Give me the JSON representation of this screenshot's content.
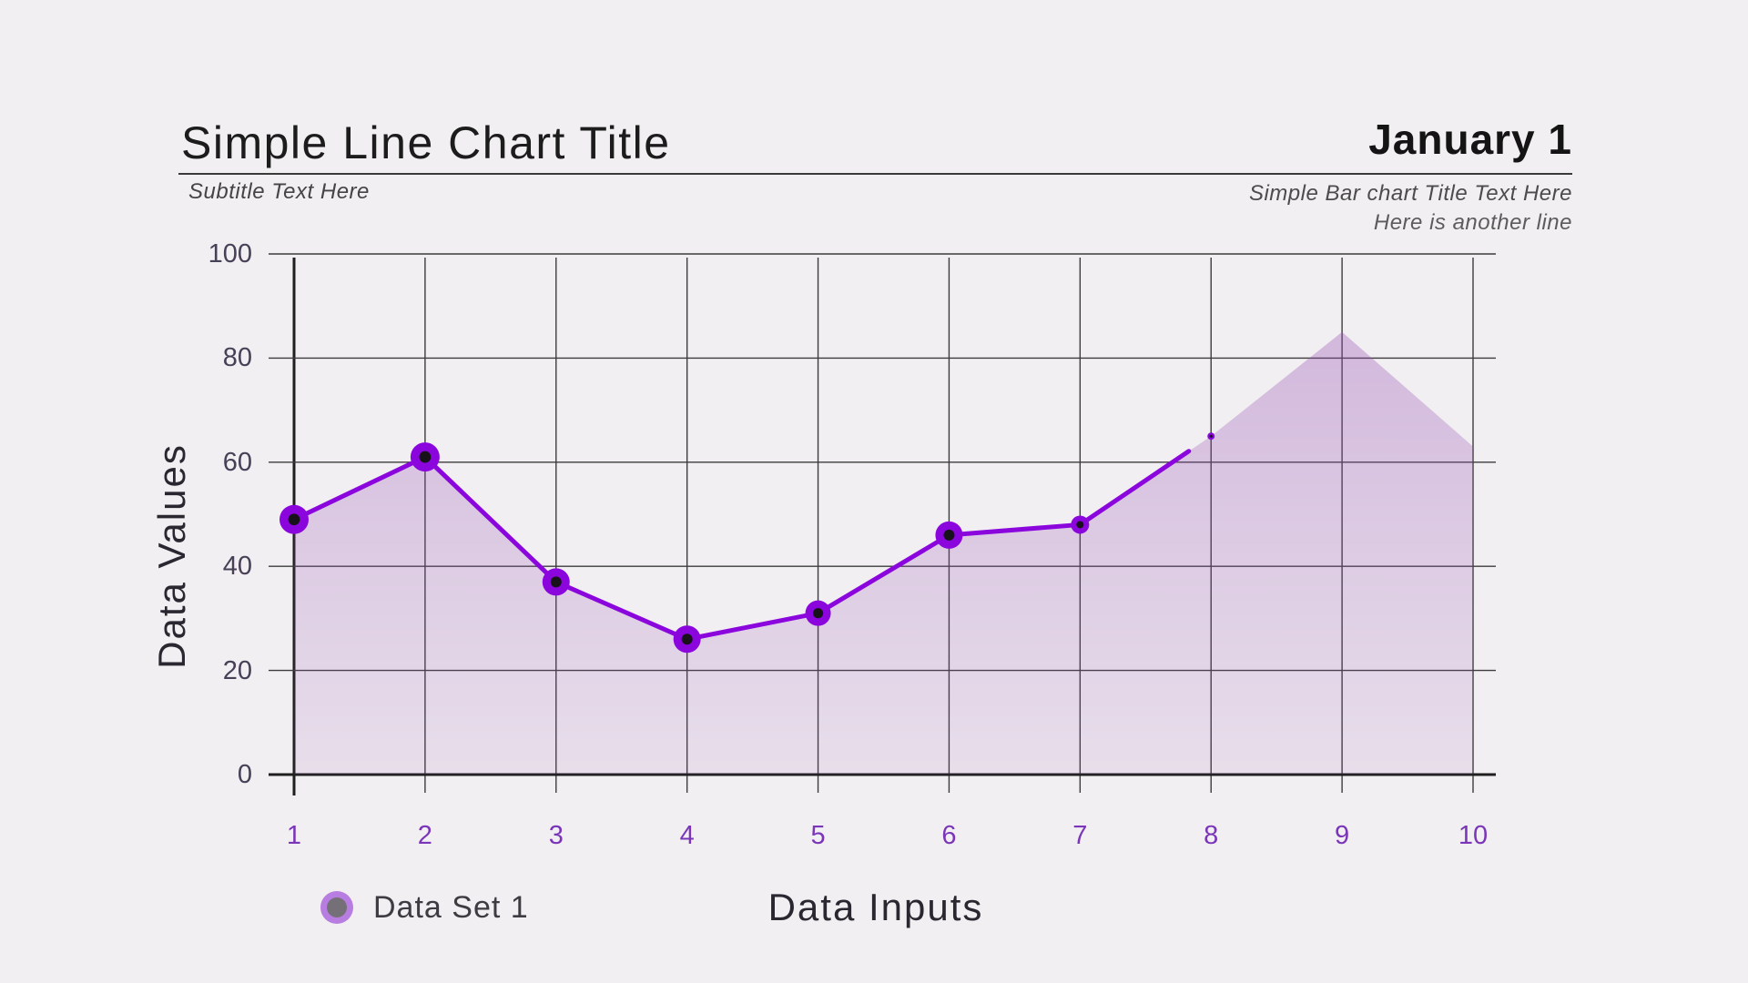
{
  "header": {
    "title": "Simple Line Chart Title",
    "subtitle": "Subtitle Text Here",
    "date_label": "January 1",
    "right_subtitle_line1": "Simple Bar chart Title Text Here",
    "right_subtitle_line2": "Here is another line"
  },
  "legend": {
    "label": "Data Set 1"
  },
  "axes": {
    "y_label": "Data Values",
    "x_label": "Data Inputs"
  },
  "colors": {
    "background": "#f1eff1",
    "line": "#8b06dd",
    "marker_core": "#17111a",
    "grid": "#3c3c3c",
    "axis": "#1f1f1f",
    "fill_top": "rgba(150,77,180,0.38)",
    "fill_bottom": "rgba(150,77,180,0.10)",
    "x_tick": "#7a35b8",
    "y_tick": "#474057",
    "legend_marker_outer": "#b77de0",
    "legend_marker_inner": "#757077"
  },
  "chart_data": {
    "type": "line",
    "title": "Simple Line Chart Title",
    "xlabel": "Data Inputs",
    "ylabel": "Data Values",
    "x": [
      1,
      2,
      3,
      4,
      5,
      6,
      7,
      8,
      9,
      10
    ],
    "y_ticks": [
      0,
      20,
      40,
      60,
      80,
      100
    ],
    "ylim": [
      0,
      100
    ],
    "grid": true,
    "legend_position": "bottom-left",
    "series": [
      {
        "name": "Data Set 1",
        "values": [
          49,
          61,
          37,
          26,
          31,
          46,
          48,
          65,
          85,
          63
        ]
      }
    ],
    "area_fill": true,
    "line_drawn_until_x": 7.83,
    "marker_radii": [
      16,
      16,
      15,
      15,
      14,
      15,
      10,
      4,
      0,
      0
    ]
  }
}
